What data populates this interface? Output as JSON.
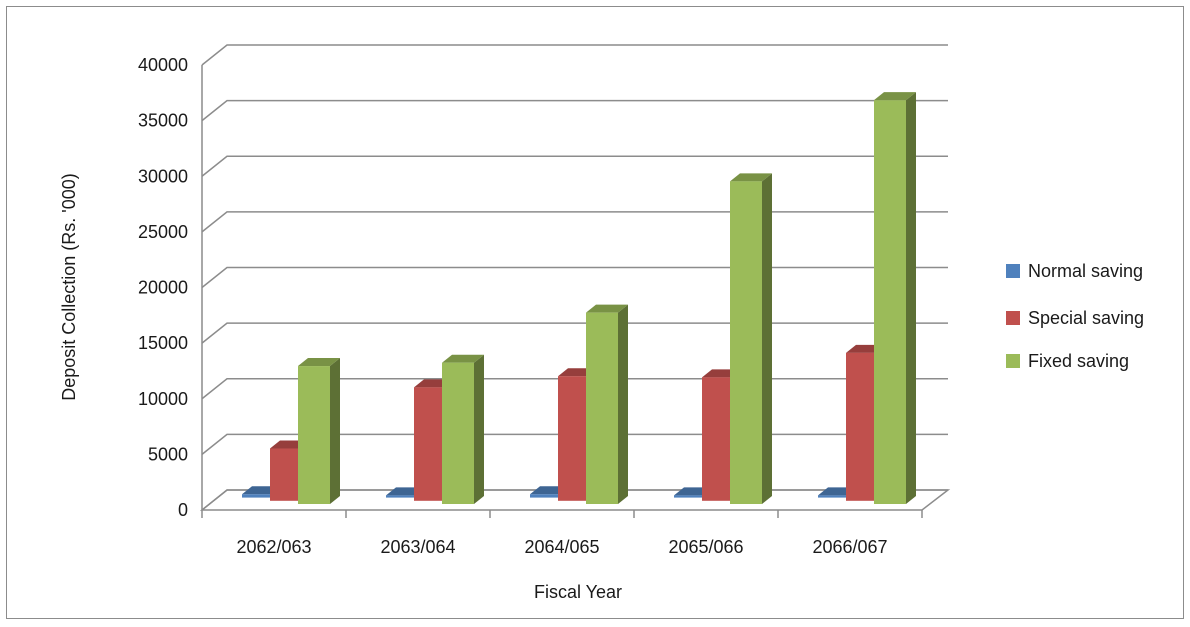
{
  "chart_data": {
    "type": "bar",
    "categories": [
      "2062/063",
      "2063/064",
      "2064/065",
      "2065/066",
      "2066/067"
    ],
    "series": [
      {
        "name": "Normal saving",
        "values": [
          300,
          200,
          300,
          200,
          200
        ],
        "color": "#4f81bd"
      },
      {
        "name": "Special saving",
        "values": [
          4700,
          10200,
          11200,
          11100,
          13300
        ],
        "color": "#c0504d"
      },
      {
        "name": "Fixed saving",
        "values": [
          12400,
          12700,
          17200,
          29000,
          36300
        ],
        "color": "#9bbb59"
      }
    ],
    "title": "",
    "xlabel": "Fiscal Year",
    "ylabel": "Deposit Collection (Rs. '000)",
    "ylim": [
      0,
      40000
    ],
    "yticks": [
      0,
      5000,
      10000,
      15000,
      20000,
      25000,
      30000,
      35000,
      40000
    ],
    "grid": true,
    "legend": "right",
    "style": "3d-clustered-column"
  }
}
